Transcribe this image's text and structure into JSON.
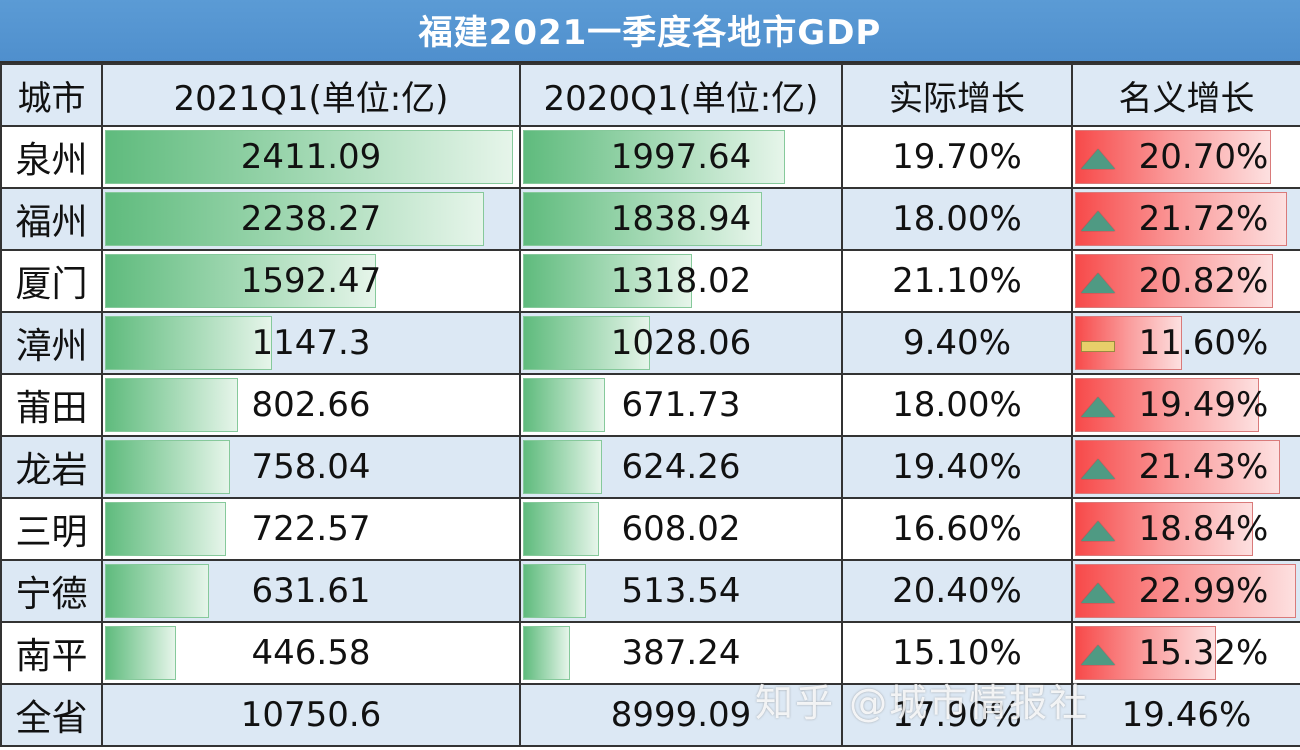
{
  "title": "福建2021一季度各地市GDP",
  "headers": [
    "城市",
    "2021Q1(单位:亿)",
    "2020Q1(单位:亿)",
    "实际增长",
    "名义增长"
  ],
  "rows": [
    {
      "city": "泉州",
      "q1_2021": "2411.09",
      "q1_2020": "1997.64",
      "real_growth": "19.70%",
      "nominal_growth": "20.70%",
      "trend_icon": "up",
      "bar2021": 99,
      "bar2020": 83,
      "barNom": 88
    },
    {
      "city": "福州",
      "q1_2021": "2238.27",
      "q1_2020": "1838.94",
      "real_growth": "18.00%",
      "nominal_growth": "21.72%",
      "trend_icon": "up",
      "bar2021": 92,
      "bar2020": 76,
      "barNom": 95
    },
    {
      "city": "厦门",
      "q1_2021": "1592.47",
      "q1_2020": "1318.02",
      "real_growth": "21.10%",
      "nominal_growth": "20.82%",
      "trend_icon": "up",
      "bar2021": 66,
      "bar2020": 54,
      "barNom": 89
    },
    {
      "city": "漳州",
      "q1_2021": "1147.3",
      "q1_2020": "1028.06",
      "real_growth": "9.40%",
      "nominal_growth": "11.60%",
      "trend_icon": "flat",
      "bar2021": 41,
      "bar2020": 41,
      "barNom": 49
    },
    {
      "city": "莆田",
      "q1_2021": "802.66",
      "q1_2020": "671.73",
      "real_growth": "18.00%",
      "nominal_growth": "19.49%",
      "trend_icon": "up",
      "bar2021": 33,
      "bar2020": 27,
      "barNom": 83
    },
    {
      "city": "龙岩",
      "q1_2021": "758.04",
      "q1_2020": "624.26",
      "real_growth": "19.40%",
      "nominal_growth": "21.43%",
      "trend_icon": "up",
      "bar2021": 31,
      "bar2020": 26,
      "barNom": 92
    },
    {
      "city": "三明",
      "q1_2021": "722.57",
      "q1_2020": "608.02",
      "real_growth": "16.60%",
      "nominal_growth": "18.84%",
      "trend_icon": "up",
      "bar2021": 30,
      "bar2020": 25,
      "barNom": 80
    },
    {
      "city": "宁德",
      "q1_2021": "631.61",
      "q1_2020": "513.54",
      "real_growth": "20.40%",
      "nominal_growth": "22.99%",
      "trend_icon": "up",
      "bar2021": 26,
      "bar2020": 21,
      "barNom": 99
    },
    {
      "city": "南平",
      "q1_2021": "446.58",
      "q1_2020": "387.24",
      "real_growth": "15.10%",
      "nominal_growth": "15.32%",
      "trend_icon": "up",
      "bar2021": 18,
      "bar2020": 16,
      "barNom": 64
    }
  ],
  "total": {
    "city": "全省",
    "q1_2021": "10750.6",
    "q1_2020": "8999.09",
    "real_growth": "17.90%",
    "nominal_growth": "19.46%"
  },
  "watermark": "知乎 @城市情报社",
  "colors": {
    "title_bg": "#5b9bd5",
    "header_bg": "#dde9f5",
    "alt_row_bg": "#dce8f4",
    "green_bar": "#5fbb7d",
    "red_bar": "#f74a4a",
    "up_icon": "#4f9a83",
    "flat_icon": "#e8cf6a"
  },
  "chart_data": {
    "type": "table",
    "title": "福建2021一季度各地市GDP",
    "columns": [
      "城市",
      "2021Q1(单位:亿)",
      "2020Q1(单位:亿)",
      "实际增长",
      "名义增长"
    ],
    "categories": [
      "泉州",
      "福州",
      "厦门",
      "漳州",
      "莆田",
      "龙岩",
      "三明",
      "宁德",
      "南平",
      "全省"
    ],
    "series": [
      {
        "name": "2021Q1(单位:亿)",
        "values": [
          2411.09,
          2238.27,
          1592.47,
          1147.3,
          802.66,
          758.04,
          722.57,
          631.61,
          446.58,
          10750.6
        ]
      },
      {
        "name": "2020Q1(单位:亿)",
        "values": [
          1997.64,
          1838.94,
          1318.02,
          1028.06,
          671.73,
          624.26,
          608.02,
          513.54,
          387.24,
          8999.09
        ]
      },
      {
        "name": "实际增长(%)",
        "values": [
          19.7,
          18.0,
          21.1,
          9.4,
          18.0,
          19.4,
          16.6,
          20.4,
          15.1,
          17.9
        ]
      },
      {
        "name": "名义增长(%)",
        "values": [
          20.7,
          21.72,
          20.82,
          11.6,
          19.49,
          21.43,
          18.84,
          22.99,
          15.32,
          19.46
        ]
      }
    ],
    "annotations": [
      "data bars on GDP columns (green)",
      "data bars on nominal growth (red) with icon set: up-triangle / flat-bar"
    ]
  }
}
